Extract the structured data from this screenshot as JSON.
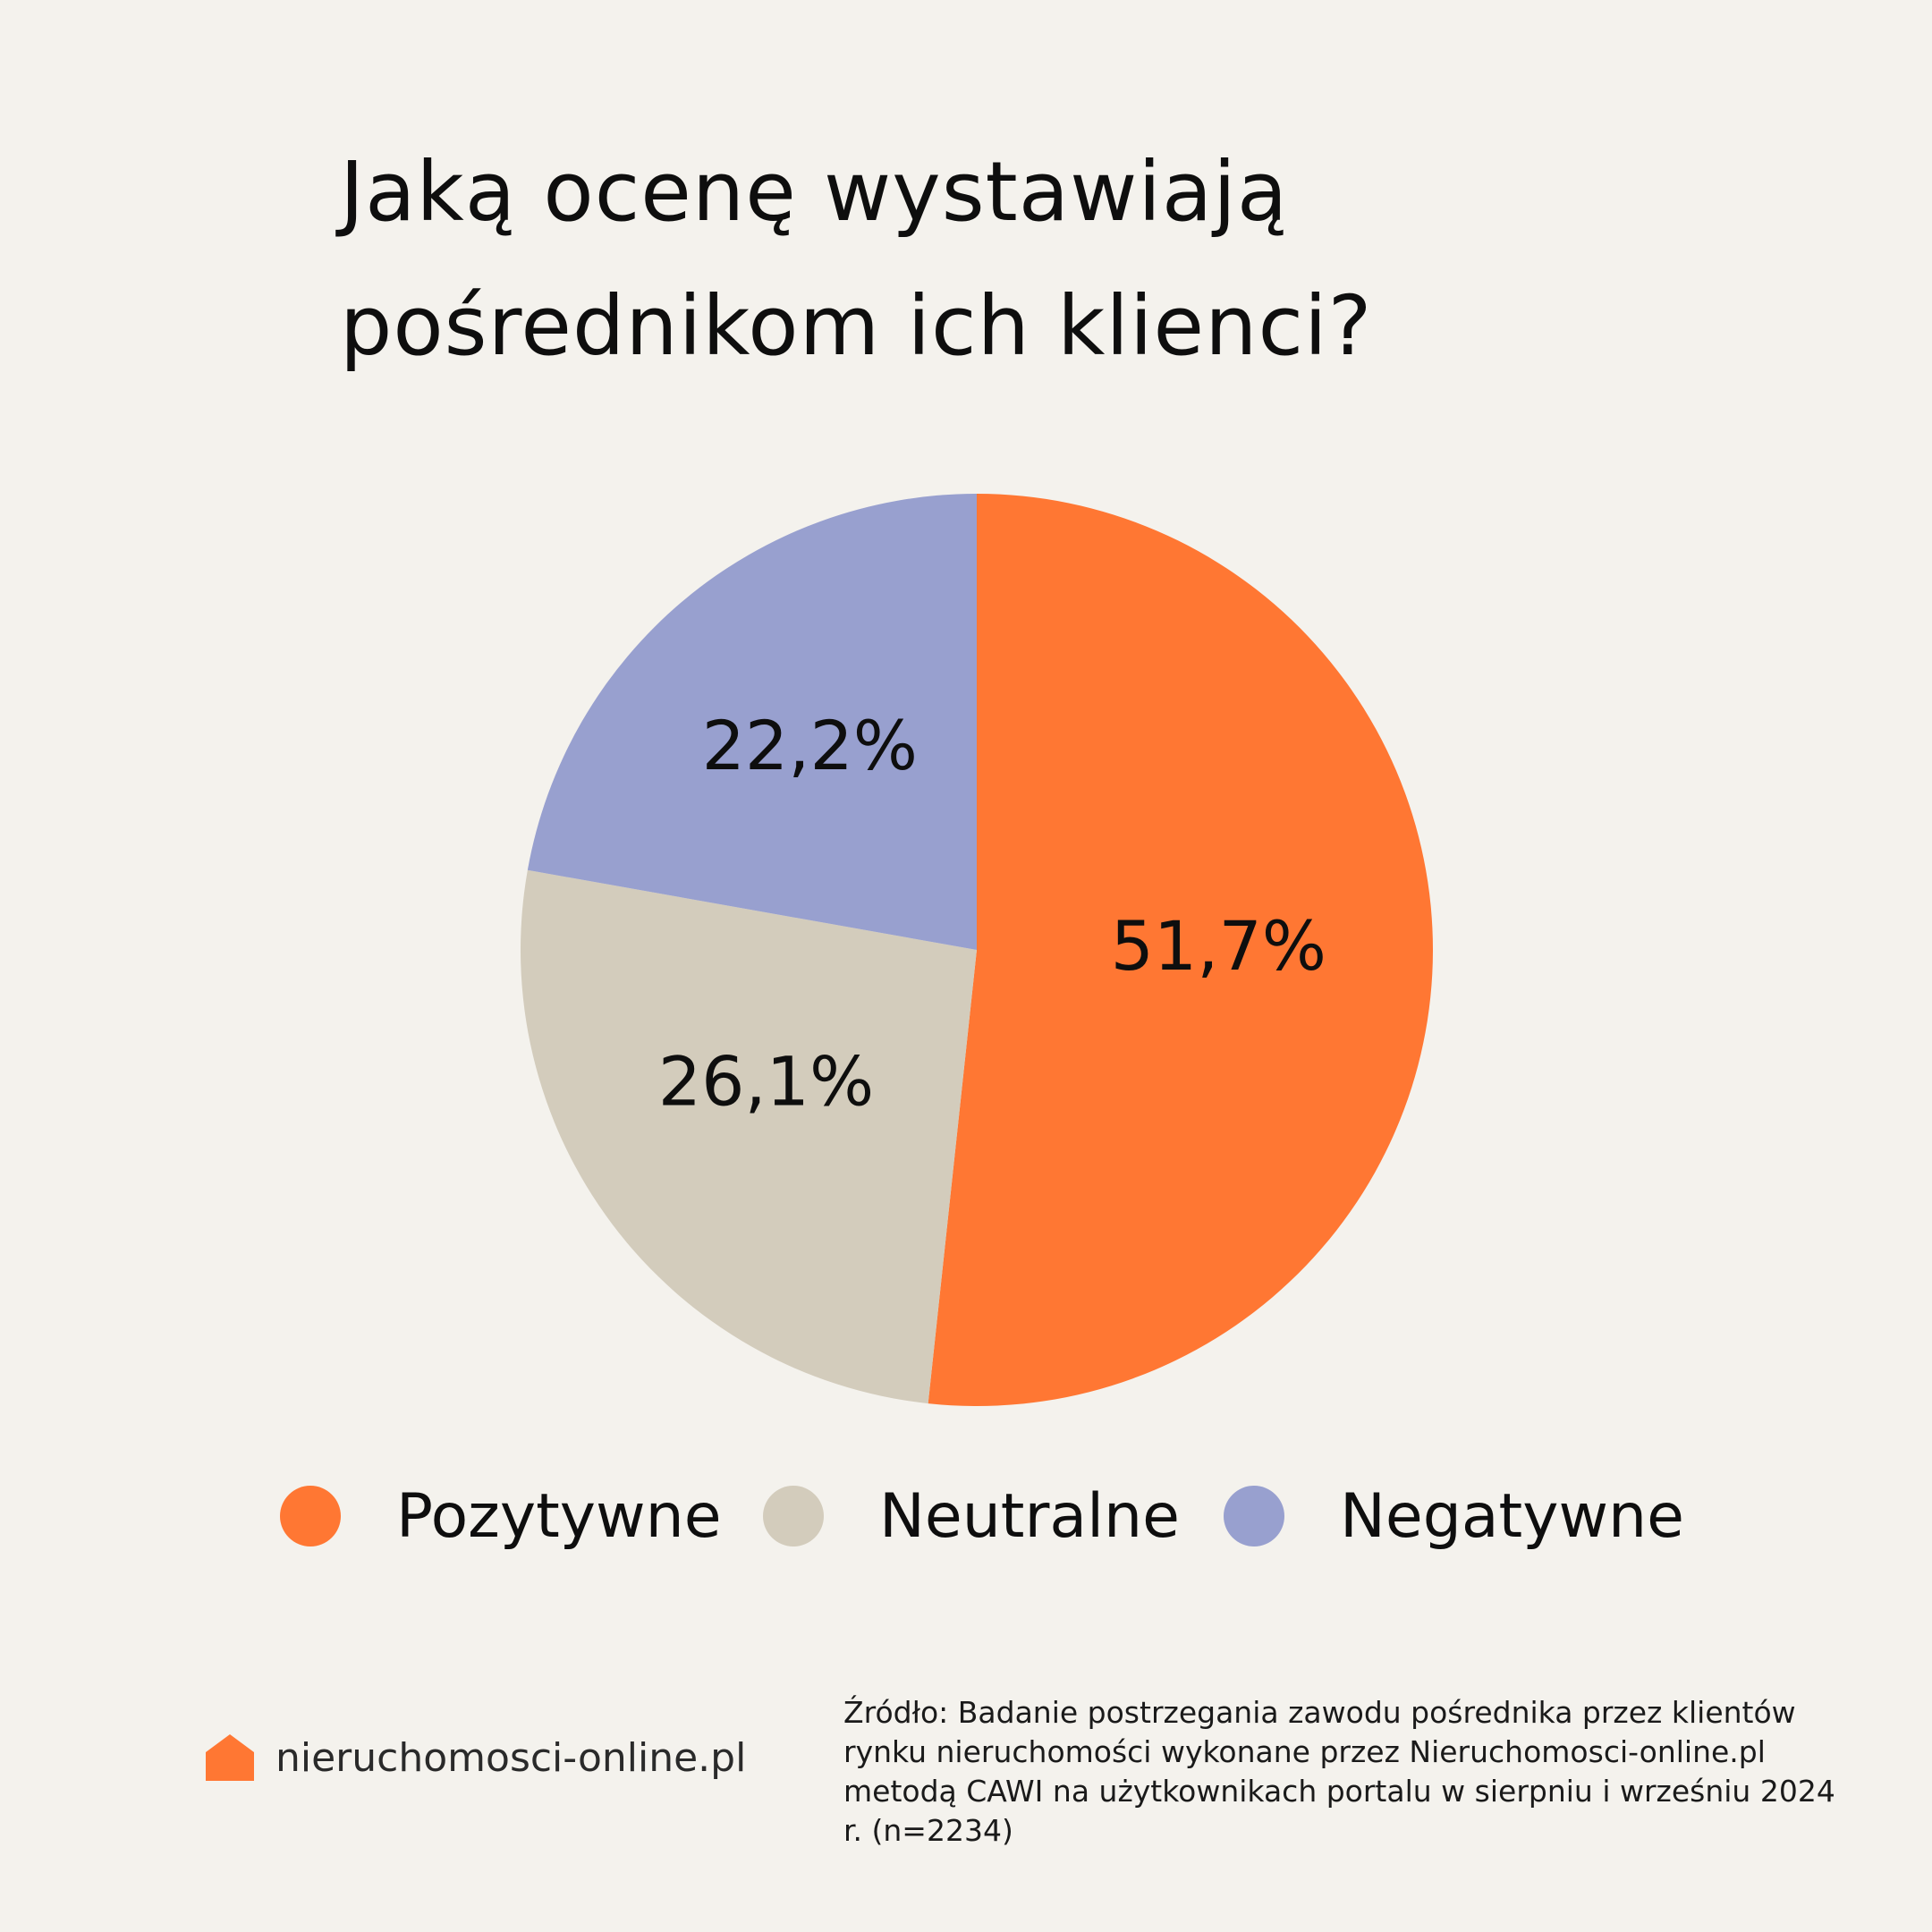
{
  "title": {
    "line1": "Jaką ocenę wystawiają",
    "line2": "pośrednikom ich klienci?"
  },
  "chart_data": {
    "type": "pie",
    "title": "Jaką ocenę wystawiają pośrednikom ich klienci?",
    "slices": [
      {
        "name": "Pozytywne",
        "value": 51.7,
        "label": "51,7%",
        "color": "#ff7733"
      },
      {
        "name": "Neutralne",
        "value": 26.1,
        "label": "26,1%",
        "color": "#d3ccbc"
      },
      {
        "name": "Negatywne",
        "value": 22.2,
        "label": "22,2%",
        "color": "#98a0cf"
      }
    ],
    "start": "12 o'clock",
    "direction": "clockwise",
    "legend_position": "bottom"
  },
  "brand": {
    "name": "nieruchomosci-online.pl",
    "icon": "house-icon",
    "color": "#ff7733"
  },
  "source_note": "Źródło: Badanie postrzegania zawodu pośrednika przez klientów rynku nieruchomości wykonane przez Nieruchomosci-online.pl metodą CAWI na użytkownikach portalu w sierpniu i wrześniu 2024 r.  (n=2234)",
  "colors": {
    "background": "#f4f2ed",
    "text": "#0e0e0e"
  }
}
